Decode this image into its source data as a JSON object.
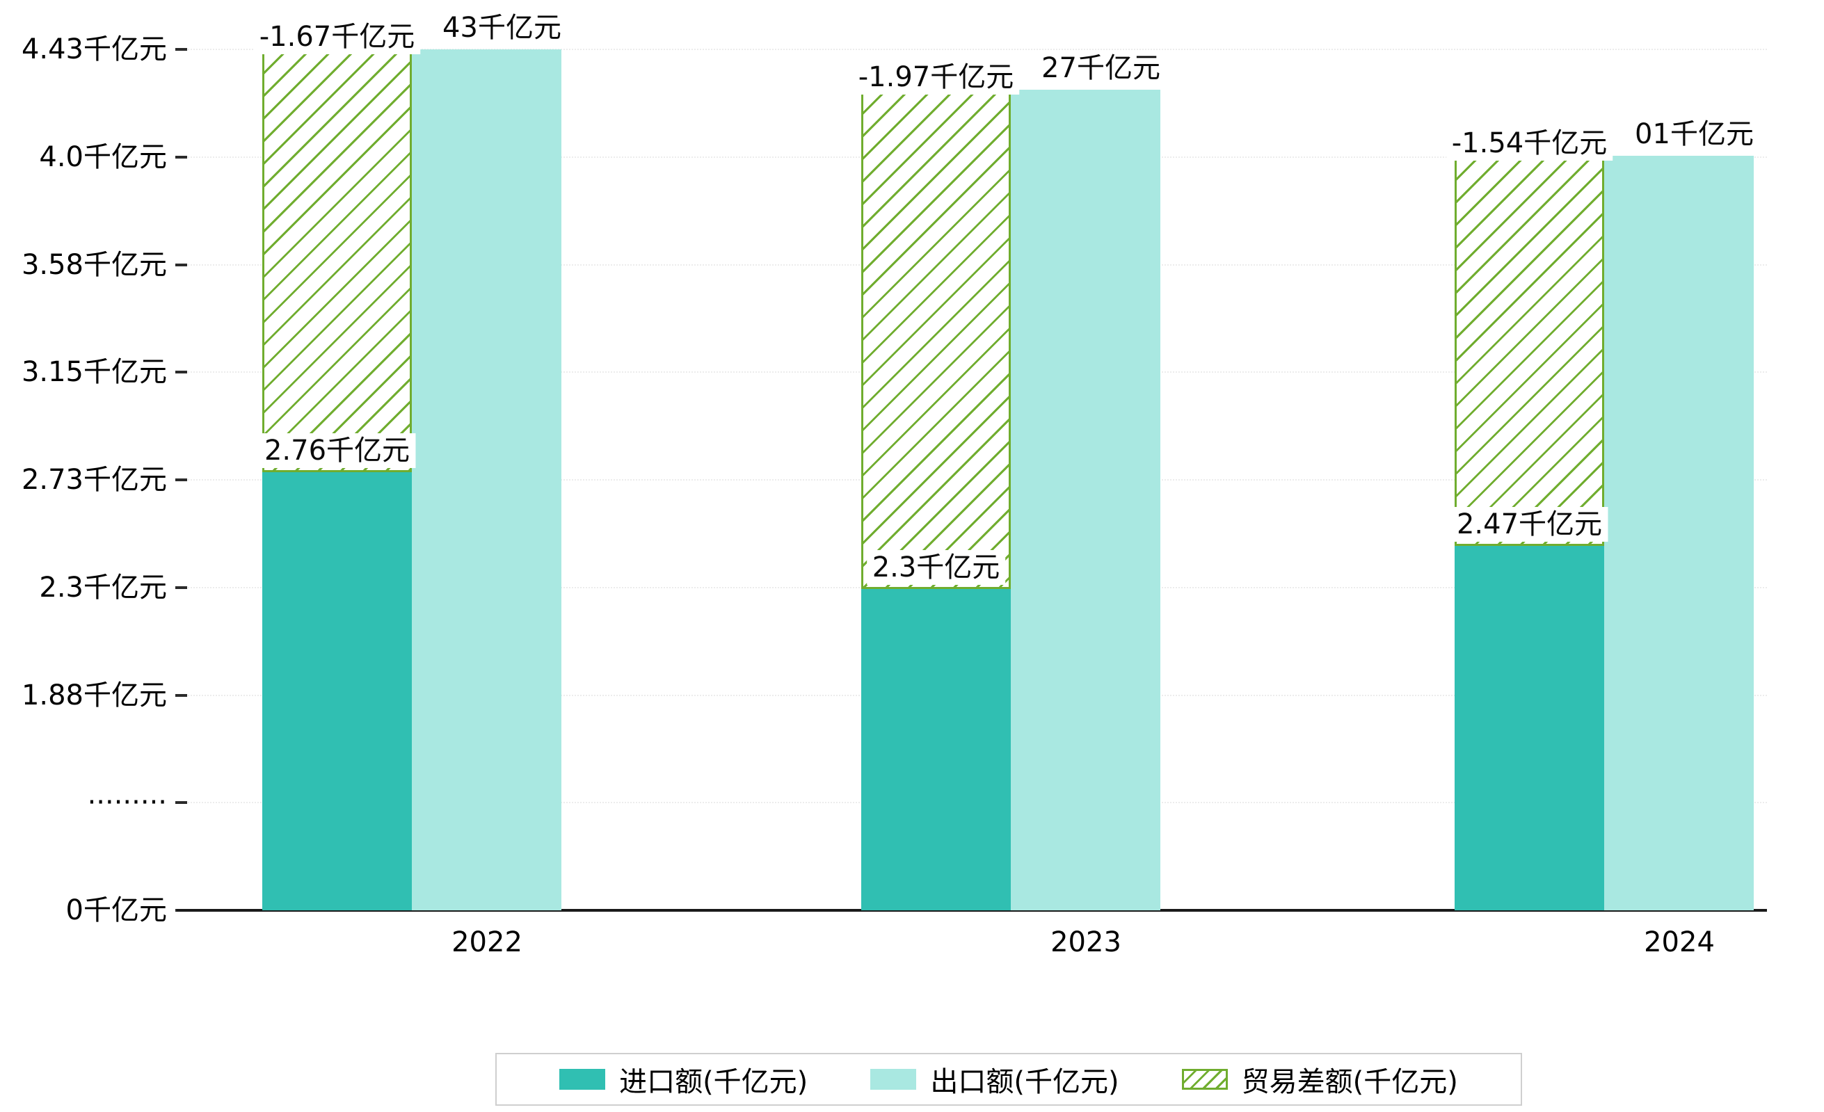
{
  "chart_data": {
    "type": "bar",
    "title": "",
    "xlabel": "",
    "ylabel": "",
    "categories": [
      "2022",
      "2023",
      "2024"
    ],
    "series": [
      {
        "name": "进口额(千亿元)",
        "values": [
          2.76,
          2.3,
          2.47
        ],
        "color": "#30bfb2",
        "style": "solid"
      },
      {
        "name": "出口额(千亿元)",
        "values": [
          4.43,
          4.27,
          4.01
        ],
        "color": "#a9e8e1",
        "style": "solid"
      },
      {
        "name": "贸易差额(千亿元)",
        "values": [
          -1.67,
          -1.97,
          -1.54
        ],
        "color": "#70ad2f",
        "style": "hatched-floating"
      }
    ],
    "y_ticks": [
      "4.43千亿元",
      "4.0千亿元",
      "3.58千亿元",
      "3.15千亿元",
      "2.73千亿元",
      "2.3千亿元",
      "1.88千亿元",
      "·········",
      "0千亿元"
    ],
    "y_axis_break_label": "·········",
    "data_labels": {
      "import": [
        "2.76千亿元",
        "2.3千亿元",
        "2.47千亿元"
      ],
      "export_visible": [
        "43千亿元",
        "27千亿元",
        "01千亿元"
      ],
      "balance": [
        "-1.67千亿元",
        "-1.97千亿元",
        "-1.54千亿元"
      ]
    },
    "legend": [
      "进口额(千亿元)",
      "出口额(千亿元)",
      "贸易差额(千亿元)"
    ],
    "legend_position": "bottom-center",
    "grid": "dotted-horizontal"
  },
  "colors": {
    "import_bar": "#30bfb2",
    "export_bar": "#a9e8e1",
    "balance_hatch": "#70ad2f",
    "background": "#ffffff",
    "axis": "#1a1a1a",
    "grid": "#ececec",
    "legend_border": "#cfcfcf",
    "text": "#000000"
  }
}
